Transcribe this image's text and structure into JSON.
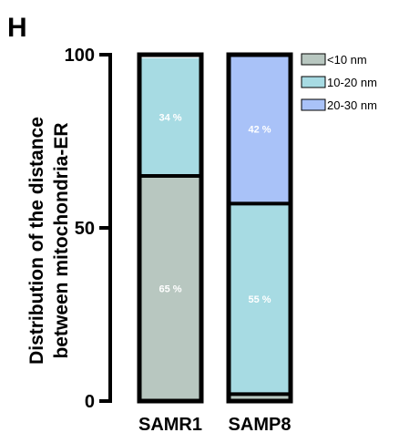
{
  "chart_data": {
    "type": "bar",
    "stacked": true,
    "panel_label": "H",
    "title": "",
    "xlabel": "",
    "ylabel": [
      "Distribution of the distance",
      "between mitochondria-ER"
    ],
    "ylim": [
      0,
      100
    ],
    "yticks": [
      0,
      50,
      100
    ],
    "grid": false,
    "legend_position": "top-right",
    "categories": [
      "SAMR1",
      "SAMP8"
    ],
    "series": [
      {
        "name": "<10 nm",
        "color": "#b8c7c0",
        "values": [
          65,
          2
        ],
        "labels": [
          "65 %",
          ""
        ]
      },
      {
        "name": "10-20 nm",
        "color": "#a7dbe3",
        "values": [
          34,
          55
        ],
        "labels": [
          "34 %",
          "55 %"
        ]
      },
      {
        "name": "20-30 nm",
        "color": "#a9c2f8",
        "values": [
          0,
          42
        ],
        "labels": [
          "",
          "42 %"
        ]
      }
    ]
  }
}
